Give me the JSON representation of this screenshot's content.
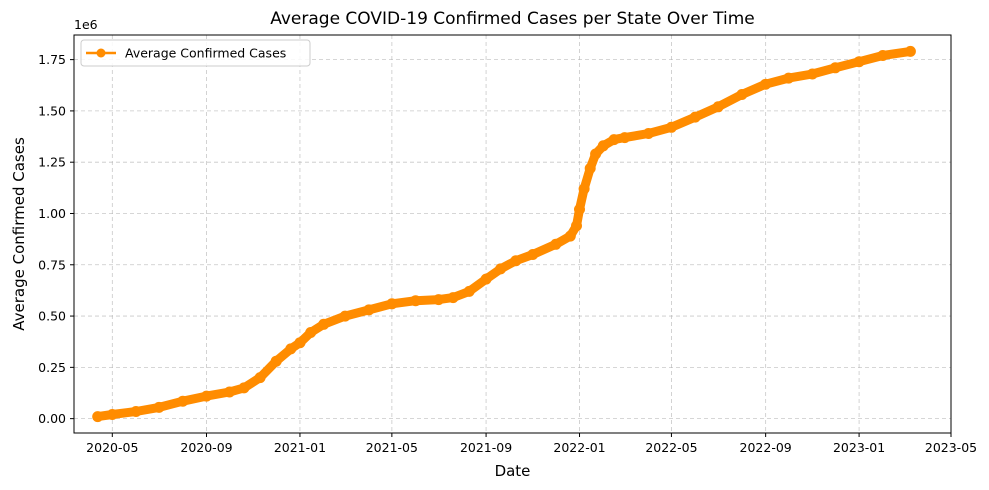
{
  "chart_data": {
    "type": "line",
    "title": "Average COVID-19 Confirmed Cases per State Over Time",
    "xlabel": "Date",
    "ylabel": "Average Confirmed Cases",
    "y_offset_label": "1e6",
    "y_scale_note": "values in millions (×1e6)",
    "xlim": [
      "2020-03-12",
      "2023-05-01"
    ],
    "ylim": [
      -0.07,
      1.87
    ],
    "x_ticks": [
      "2020-05-01",
      "2020-09-01",
      "2021-01-01",
      "2021-05-01",
      "2021-09-01",
      "2022-01-01",
      "2022-05-01",
      "2022-09-01",
      "2023-01-01",
      "2023-05-01"
    ],
    "x_tick_labels": [
      "2020-05",
      "2020-09",
      "2021-01",
      "2021-05",
      "2021-09",
      "2022-01",
      "2022-05",
      "2022-09",
      "2023-01",
      "2023-05"
    ],
    "y_ticks": [
      0.0,
      0.25,
      0.5,
      0.75,
      1.0,
      1.25,
      1.5,
      1.75
    ],
    "y_tick_labels": [
      "0.00",
      "0.25",
      "0.50",
      "0.75",
      "1.00",
      "1.25",
      "1.50",
      "1.75"
    ],
    "grid": true,
    "legend_position": "top-left",
    "series": [
      {
        "name": "Average Confirmed Cases",
        "color": "#ff8c00",
        "marker": "circle",
        "x": [
          "2020-04-12",
          "2020-05-01",
          "2020-06-01",
          "2020-07-01",
          "2020-08-01",
          "2020-09-01",
          "2020-10-01",
          "2020-10-20",
          "2020-11-10",
          "2020-12-01",
          "2020-12-20",
          "2021-01-01",
          "2021-01-15",
          "2021-02-01",
          "2021-03-01",
          "2021-04-01",
          "2021-05-01",
          "2021-06-01",
          "2021-07-01",
          "2021-07-20",
          "2021-08-10",
          "2021-09-01",
          "2021-09-20",
          "2021-10-10",
          "2021-11-01",
          "2021-12-01",
          "2021-12-20",
          "2021-12-28",
          "2022-01-01",
          "2022-01-07",
          "2022-01-15",
          "2022-01-22",
          "2022-02-01",
          "2022-02-15",
          "2022-03-01",
          "2022-04-01",
          "2022-05-01",
          "2022-06-01",
          "2022-07-01",
          "2022-08-01",
          "2022-09-01",
          "2022-10-01",
          "2022-11-01",
          "2022-12-01",
          "2023-01-01",
          "2023-02-01",
          "2023-03-09"
        ],
        "y": [
          0.01,
          0.02,
          0.035,
          0.055,
          0.085,
          0.11,
          0.13,
          0.15,
          0.2,
          0.28,
          0.34,
          0.37,
          0.42,
          0.46,
          0.5,
          0.53,
          0.56,
          0.575,
          0.58,
          0.59,
          0.62,
          0.68,
          0.73,
          0.77,
          0.8,
          0.85,
          0.89,
          0.94,
          1.02,
          1.12,
          1.22,
          1.29,
          1.33,
          1.36,
          1.37,
          1.39,
          1.42,
          1.47,
          1.52,
          1.58,
          1.63,
          1.66,
          1.68,
          1.71,
          1.74,
          1.77,
          1.79
        ]
      }
    ]
  }
}
